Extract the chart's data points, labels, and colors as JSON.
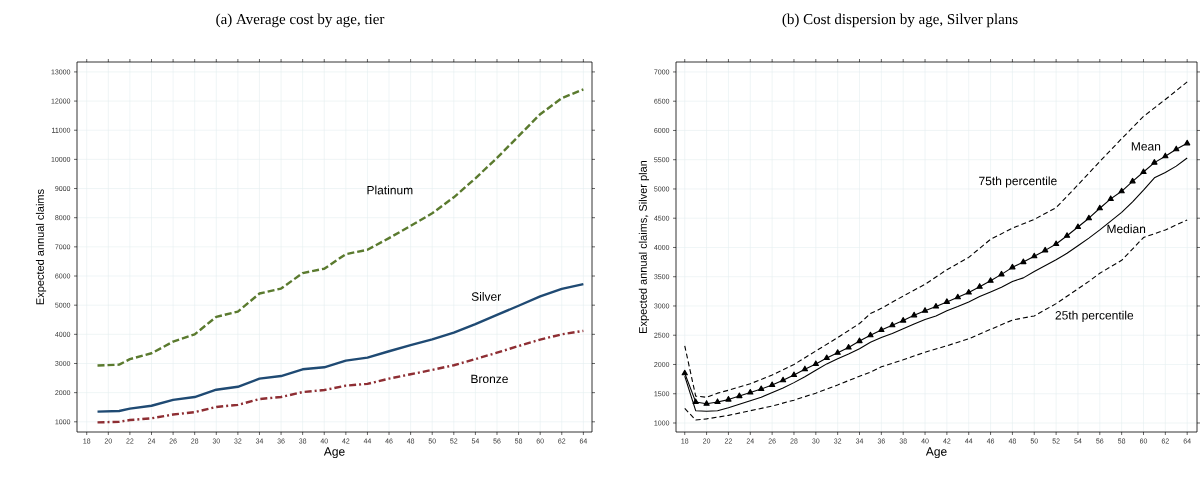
{
  "chart_data": [
    {
      "type": "line",
      "title": "(a) Average cost by age, tier",
      "xlabel": "Age",
      "ylabel": "Expected annual claims",
      "xlim": [
        17.1,
        64.8
      ],
      "ylim": [
        650,
        13340
      ],
      "xticks": [
        18,
        20,
        22,
        24,
        26,
        28,
        30,
        32,
        34,
        36,
        38,
        40,
        42,
        44,
        46,
        48,
        50,
        52,
        54,
        56,
        58,
        60,
        62,
        64
      ],
      "yticks": [
        1000,
        2000,
        3000,
        4000,
        5000,
        6000,
        7000,
        8000,
        9000,
        10000,
        11000,
        12000,
        13000
      ],
      "grid": true,
      "marker": "none",
      "x": [
        19,
        21,
        22,
        24,
        26,
        28,
        30,
        32,
        34,
        36,
        38,
        40,
        42,
        44,
        46,
        48,
        50,
        52,
        54,
        56,
        58,
        60,
        62,
        64
      ],
      "series": [
        {
          "name": "Platinum",
          "color": "#5a7a2e",
          "line_style": "dashed",
          "values": [
            2930,
            2960,
            3150,
            3350,
            3750,
            4000,
            4600,
            4780,
            5400,
            5570,
            6100,
            6250,
            6750,
            6900,
            7300,
            7720,
            8150,
            8700,
            9350,
            10050,
            10800,
            11550,
            12100,
            12400
          ]
        },
        {
          "name": "Silver",
          "color": "#1f4a73",
          "line_style": "solid",
          "values": [
            1350,
            1370,
            1450,
            1550,
            1750,
            1850,
            2100,
            2200,
            2480,
            2570,
            2800,
            2870,
            3100,
            3200,
            3420,
            3630,
            3830,
            4060,
            4350,
            4670,
            4980,
            5300,
            5560,
            5720
          ]
        },
        {
          "name": "Bronze",
          "color": "#8e2e33",
          "line_style": "dashdot",
          "values": [
            980,
            1000,
            1060,
            1120,
            1250,
            1330,
            1510,
            1580,
            1780,
            1850,
            2020,
            2090,
            2240,
            2300,
            2480,
            2630,
            2780,
            2940,
            3150,
            3370,
            3600,
            3820,
            4000,
            4120
          ]
        }
      ]
    },
    {
      "type": "line",
      "title": "(b) Cost dispersion by age, Silver plans",
      "xlabel": "Age",
      "ylabel": "Expected annual claims, Silver plan",
      "xlim": [
        17.2,
        64.9
      ],
      "ylim": [
        846,
        7170
      ],
      "xticks": [
        18,
        20,
        22,
        24,
        26,
        28,
        30,
        32,
        34,
        36,
        38,
        40,
        42,
        44,
        46,
        48,
        50,
        52,
        54,
        56,
        58,
        60,
        62,
        64
      ],
      "yticks": [
        1000,
        1500,
        2000,
        2500,
        3000,
        3500,
        4000,
        4500,
        5000,
        5500,
        6000,
        6500,
        7000
      ],
      "grid": true,
      "series": [
        {
          "name": "Mean",
          "color": "#000000",
          "line_style": "solid",
          "marker": "triangle",
          "x": [
            18,
            19,
            20,
            21,
            22,
            23,
            24,
            25,
            26,
            27,
            28,
            29,
            30,
            31,
            32,
            33,
            34,
            35,
            36,
            37,
            38,
            39,
            40,
            41,
            42,
            43,
            44,
            45,
            46,
            47,
            48,
            49,
            50,
            51,
            52,
            53,
            54,
            55,
            56,
            57,
            58,
            59,
            60,
            61,
            62,
            63,
            64
          ],
          "values": [
            1850,
            1360,
            1330,
            1360,
            1400,
            1460,
            1520,
            1580,
            1650,
            1730,
            1820,
            1920,
            2010,
            2110,
            2200,
            2290,
            2400,
            2500,
            2590,
            2670,
            2750,
            2840,
            2920,
            2990,
            3070,
            3150,
            3230,
            3330,
            3430,
            3540,
            3660,
            3750,
            3850,
            3950,
            4060,
            4200,
            4350,
            4500,
            4670,
            4830,
            4960,
            5130,
            5290,
            5450,
            5560,
            5680,
            5780
          ]
        },
        {
          "name": "Median",
          "color": "#000000",
          "line_style": "solid",
          "marker": "none",
          "x": [
            18,
            19,
            20,
            21,
            22,
            23,
            24,
            25,
            26,
            27,
            28,
            29,
            30,
            31,
            32,
            33,
            34,
            35,
            36,
            37,
            38,
            39,
            40,
            41,
            42,
            43,
            44,
            45,
            46,
            47,
            48,
            49,
            50,
            51,
            52,
            53,
            54,
            55,
            56,
            57,
            58,
            59,
            60,
            61,
            62,
            63,
            64
          ],
          "values": [
            1800,
            1210,
            1200,
            1210,
            1260,
            1320,
            1380,
            1440,
            1520,
            1600,
            1690,
            1790,
            1900,
            2010,
            2100,
            2180,
            2270,
            2380,
            2460,
            2530,
            2610,
            2690,
            2770,
            2830,
            2920,
            2990,
            3070,
            3160,
            3240,
            3320,
            3420,
            3480,
            3590,
            3690,
            3790,
            3900,
            4030,
            4160,
            4300,
            4450,
            4600,
            4780,
            4980,
            5190,
            5280,
            5390,
            5530
          ]
        },
        {
          "name": "75th percentile",
          "color": "#000000",
          "line_style": "dashed",
          "marker": "none",
          "x": [
            18,
            19,
            20,
            21,
            22,
            24,
            26,
            28,
            30,
            32,
            34,
            35,
            36,
            38,
            40,
            42,
            44,
            46,
            48,
            50,
            52,
            54,
            56,
            58,
            60,
            62,
            64
          ],
          "values": [
            2320,
            1460,
            1440,
            1510,
            1560,
            1670,
            1820,
            2000,
            2230,
            2460,
            2700,
            2870,
            2960,
            3170,
            3370,
            3620,
            3830,
            4140,
            4330,
            4480,
            4680,
            5070,
            5470,
            5860,
            6240,
            6530,
            6830
          ]
        },
        {
          "name": "25th percentile",
          "color": "#000000",
          "line_style": "dashed",
          "marker": "none",
          "x": [
            18,
            19,
            20,
            22,
            24,
            26,
            28,
            30,
            32,
            34,
            35,
            36,
            38,
            40,
            42,
            44,
            46,
            48,
            50,
            52,
            55,
            56,
            58,
            60,
            62,
            64
          ],
          "values": [
            1250,
            1050,
            1070,
            1130,
            1210,
            1290,
            1390,
            1510,
            1650,
            1800,
            1870,
            1960,
            2080,
            2210,
            2320,
            2440,
            2600,
            2760,
            2830,
            3040,
            3420,
            3560,
            3780,
            4170,
            4300,
            4470
          ]
        }
      ]
    }
  ]
}
